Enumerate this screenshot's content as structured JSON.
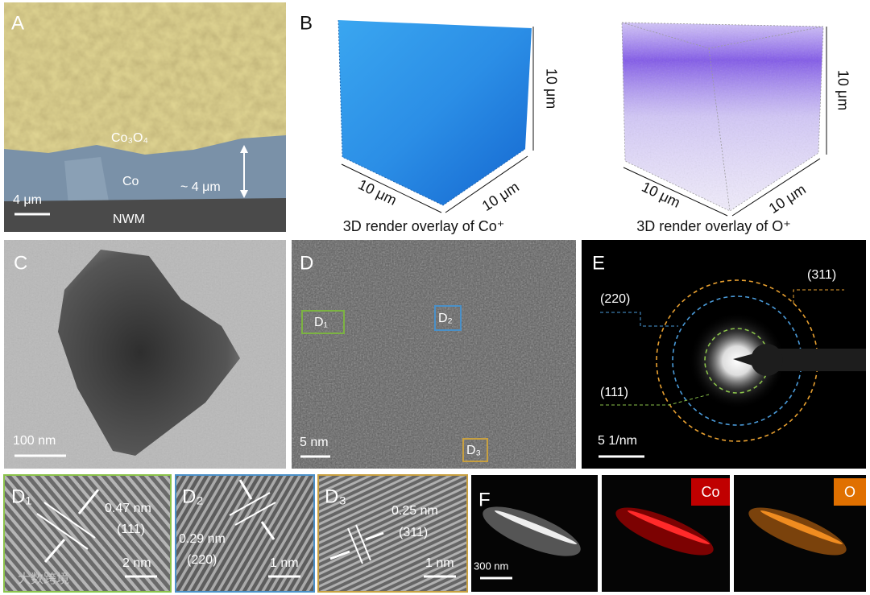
{
  "panel_a": {
    "label": "A",
    "layer_top": "Co₃O₄",
    "layer_mid": "Co",
    "thickness": "~ 4 μm",
    "substrate": "NWM",
    "scale_bar": "4 μm"
  },
  "panel_b": {
    "label": "B",
    "cubes": [
      {
        "edge_labels": [
          "10 μm",
          "10 μm",
          "10 μm"
        ],
        "caption": "3D render overlay of Co⁺"
      },
      {
        "edge_labels": [
          "10 μm",
          "10 μm",
          "10 μm"
        ],
        "caption": "3D render overlay of O⁺"
      }
    ]
  },
  "panel_c": {
    "label": "C",
    "scale_bar": "100 nm"
  },
  "panel_d": {
    "label": "D",
    "regions": [
      "D₁",
      "D₂",
      "D₃"
    ],
    "scale_bar": "5 nm"
  },
  "panel_e": {
    "label": "E",
    "rings": [
      "(311)",
      "(220)",
      "(111)"
    ],
    "scale_bar": "5 1/nm"
  },
  "insets": [
    {
      "label": "D₁",
      "spacing": "0.47 nm",
      "plane": "(111)",
      "scale_bar": "2 nm"
    },
    {
      "label": "D₂",
      "spacing": "0.29 nm",
      "plane": "(220)",
      "scale_bar": "1 nm"
    },
    {
      "label": "D₃",
      "spacing": "0.25 nm",
      "plane": "(311)",
      "scale_bar": "1 nm"
    }
  ],
  "panel_f": {
    "label": "F",
    "scale_bar": "300 nm",
    "maps": [
      "Co",
      "O"
    ]
  },
  "watermark": "大数跨境"
}
